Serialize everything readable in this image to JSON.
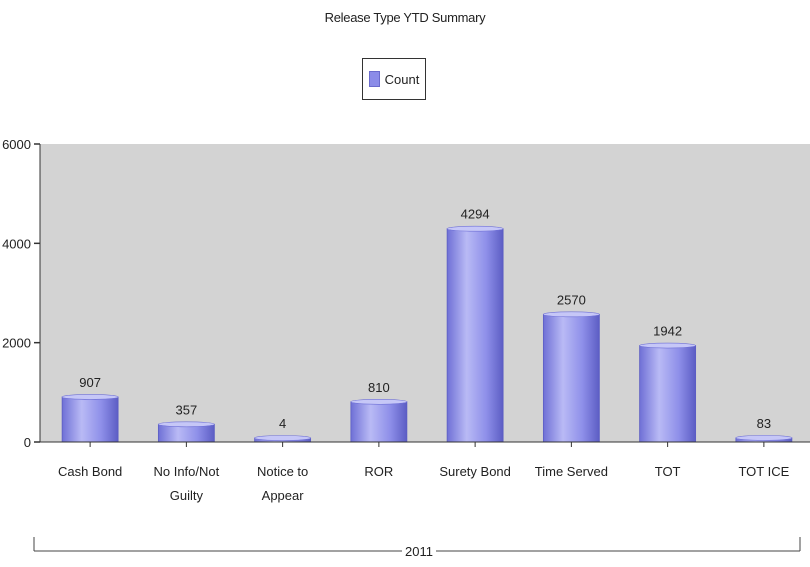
{
  "chart_data": {
    "type": "bar",
    "title": "Release Type YTD Summary",
    "legend": [
      "Count"
    ],
    "legend_position": "top-center",
    "series": [
      {
        "name": "Count",
        "values": [
          907,
          357,
          4,
          810,
          4294,
          2570,
          1942,
          83
        ]
      }
    ],
    "categories": [
      [
        "Cash Bond"
      ],
      [
        "No Info/Not",
        "Guilty"
      ],
      [
        "Notice to",
        "Appear"
      ],
      [
        "ROR"
      ],
      [
        "Surety Bond"
      ],
      [
        "Time Served"
      ],
      [
        "TOT"
      ],
      [
        "TOT ICE"
      ]
    ],
    "group_label": "2011",
    "ylim": [
      0,
      6000
    ],
    "yticks": [
      0,
      2000,
      4000,
      6000
    ],
    "grid": false,
    "colors": {
      "bar": "#8b8ce8",
      "bar_dark": "#5c5dc4",
      "bar_light": "#c6c7f7",
      "plot_bg": "#d3d3d3"
    }
  }
}
